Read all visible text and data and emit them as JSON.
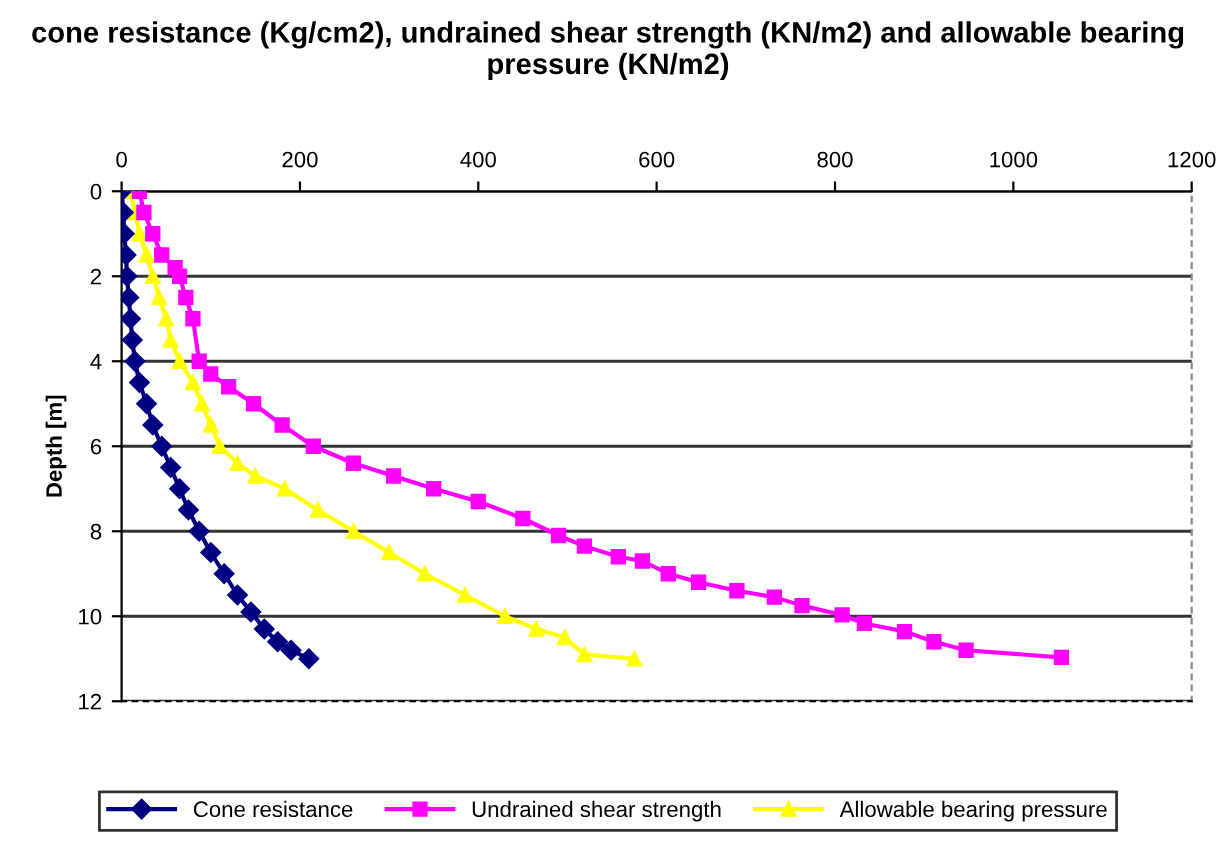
{
  "chart_data": {
    "type": "line",
    "title": "cone resistance (Kg/cm2), undrained shear strength (KN/m2) and allowable bearing pressure (KN/m2)",
    "ylabel": "Depth [m]",
    "xlim": [
      0,
      1200
    ],
    "xticks": [
      0,
      200,
      400,
      600,
      800,
      1000,
      1200
    ],
    "ylim": [
      12,
      0
    ],
    "yticks": [
      0,
      2,
      4,
      6,
      8,
      10,
      12
    ],
    "grid": "y",
    "legend": "bottom",
    "series": [
      {
        "name": "Cone resistance",
        "color": "#000080",
        "marker": "diamond",
        "x": [
          0,
          2,
          3,
          5,
          6,
          8,
          10,
          12,
          15,
          20,
          28,
          35,
          45,
          55,
          65,
          75,
          87,
          100,
          115,
          130,
          145,
          160,
          175,
          190,
          210
        ],
        "values": [
          0,
          0.5,
          1,
          1.5,
          2,
          2.5,
          3,
          3.5,
          4,
          4.5,
          5,
          5.5,
          6,
          6.5,
          7,
          7.5,
          8,
          8.5,
          9,
          9.5,
          9.9,
          10.3,
          10.6,
          10.8,
          11
        ]
      },
      {
        "name": "Undrained shear strength",
        "color": "#ff00ff",
        "marker": "square",
        "x": [
          20,
          25,
          35,
          45,
          60,
          65,
          72,
          80,
          87,
          100,
          120,
          148,
          180,
          215,
          260,
          305,
          350,
          400,
          450,
          490,
          519,
          557,
          584,
          613,
          647,
          690,
          732,
          763,
          808,
          833,
          878,
          911,
          947,
          1054
        ],
        "values": [
          0,
          0.5,
          1,
          1.5,
          1.8,
          2,
          2.5,
          3,
          4,
          4.3,
          4.6,
          5,
          5.5,
          6,
          6.4,
          6.7,
          7,
          7.3,
          7.7,
          8.1,
          8.35,
          8.6,
          8.7,
          9,
          9.2,
          9.4,
          9.55,
          9.75,
          9.97,
          10.17,
          10.36,
          10.6,
          10.8,
          10.97
        ]
      },
      {
        "name": "Allowable bearing pressure",
        "color": "#ffff00",
        "marker": "triangle",
        "x": [
          10,
          15,
          20,
          28,
          35,
          42,
          50,
          55,
          65,
          80,
          90,
          100,
          110,
          130,
          150,
          183,
          220,
          260,
          300,
          340,
          385,
          430,
          465,
          497,
          519,
          575
        ],
        "values": [
          0,
          0.5,
          1,
          1.5,
          2,
          2.5,
          3,
          3.5,
          4,
          4.5,
          5,
          5.5,
          6,
          6.4,
          6.7,
          7,
          7.5,
          8,
          8.5,
          9,
          9.5,
          10,
          10.3,
          10.5,
          10.9,
          11
        ]
      }
    ]
  }
}
